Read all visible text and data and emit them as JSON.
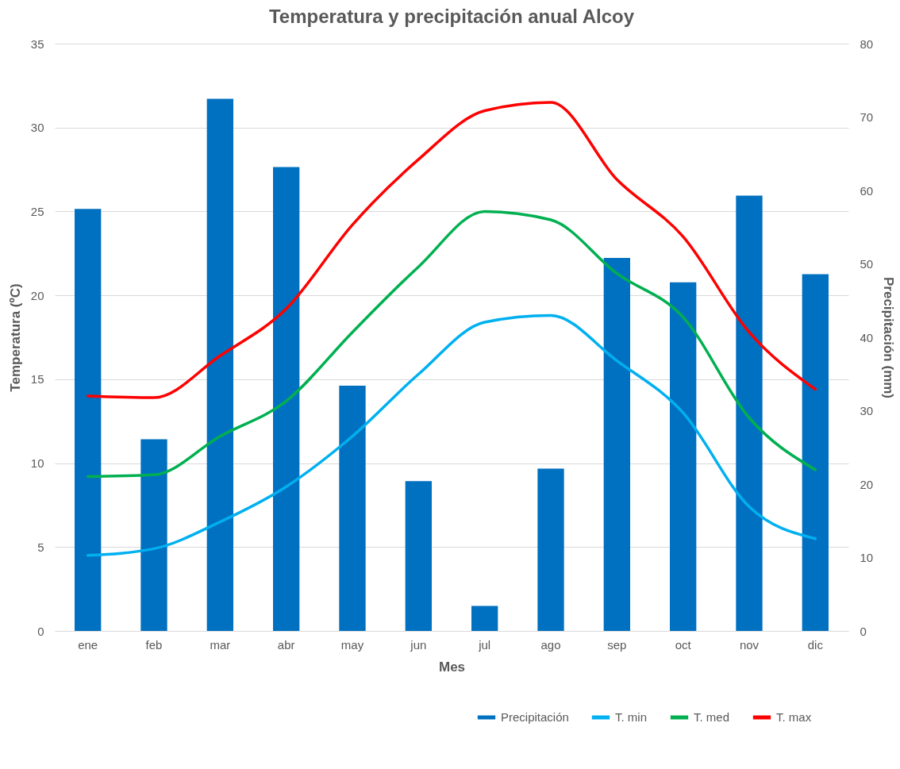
{
  "chart_data": {
    "type": "line",
    "title": "Temperatura y precipitación anual Alcoy",
    "xlabel": "Mes",
    "ylabel": "Temperatura (ºC)",
    "y2label": "Precipitación (mm)",
    "categories": [
      "ene",
      "feb",
      "mar",
      "abr",
      "may",
      "jun",
      "jul",
      "ago",
      "sep",
      "oct",
      "nov",
      "dic"
    ],
    "series": [
      {
        "name": "Precipitación",
        "type": "bar",
        "axis": "y2",
        "color": "#0070c0",
        "values": [
          57.5,
          26.1,
          72.5,
          63.2,
          33.4,
          20.4,
          3.4,
          22.1,
          50.8,
          47.5,
          59.3,
          48.6
        ]
      },
      {
        "name": "T. min",
        "color": "#00b0f0",
        "values": [
          4.5,
          4.9,
          6.5,
          8.6,
          11.6,
          15.3,
          18.4,
          18.8,
          16.1,
          13.0,
          7.4,
          5.5
        ]
      },
      {
        "name": "T. med",
        "color": "#00b050",
        "values": [
          9.2,
          9.3,
          11.6,
          13.7,
          17.8,
          21.7,
          25.0,
          24.5,
          21.3,
          18.7,
          12.7,
          9.6
        ]
      },
      {
        "name": "T. max",
        "color": "#ff0000",
        "values": [
          14.0,
          13.9,
          16.4,
          19.2,
          24.2,
          28.1,
          31.0,
          31.5,
          26.9,
          23.5,
          17.8,
          14.4
        ]
      }
    ],
    "ylim": [
      0,
      35
    ],
    "yticks": [
      0,
      5,
      10,
      15,
      20,
      25,
      30,
      35
    ],
    "y2lim": [
      0,
      80
    ],
    "y2ticks": [
      0,
      10,
      20,
      30,
      40,
      50,
      60,
      70,
      80
    ],
    "grid": "y",
    "legend": "bottom right",
    "marker": "none",
    "line_style": "solid"
  }
}
